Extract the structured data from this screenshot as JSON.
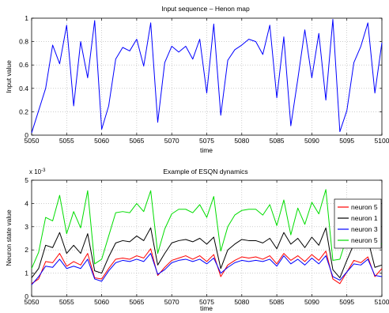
{
  "chart_data": [
    {
      "type": "line",
      "title": "Input sequence – Henon map",
      "xlabel": "time",
      "ylabel": "Input value",
      "xlim": [
        5050,
        5100
      ],
      "ylim": [
        0,
        1
      ],
      "xticks": [
        "5050",
        "5055",
        "5060",
        "5065",
        "5070",
        "5075",
        "5080",
        "5085",
        "5090",
        "5095",
        "5100"
      ],
      "yticks": [
        "0",
        "0.2",
        "0.4",
        "0.6",
        "0.8",
        "1"
      ],
      "grid": true,
      "colors": {
        "line": "#0000ff"
      },
      "series": [
        {
          "x": [
            5050,
            5051,
            5052,
            5053,
            5054,
            5055,
            5056,
            5057,
            5058,
            5059,
            5060,
            5061,
            5062,
            5063,
            5064,
            5065,
            5066,
            5067,
            5068,
            5069,
            5070,
            5071,
            5072,
            5073,
            5074,
            5075,
            5076,
            5077,
            5078,
            5079,
            5080,
            5081,
            5082,
            5083,
            5084,
            5085,
            5086,
            5087,
            5088,
            5089,
            5090,
            5091,
            5092,
            5093,
            5094,
            5095,
            5096,
            5097,
            5098,
            5099,
            5100
          ],
          "values": [
            0.02,
            0.21,
            0.4,
            0.77,
            0.61,
            0.94,
            0.25,
            0.8,
            0.49,
            0.98,
            0.05,
            0.25,
            0.65,
            0.75,
            0.72,
            0.82,
            0.59,
            0.96,
            0.11,
            0.62,
            0.76,
            0.71,
            0.76,
            0.65,
            0.82,
            0.36,
            0.95,
            0.17,
            0.64,
            0.73,
            0.77,
            0.82,
            0.8,
            0.69,
            0.94,
            0.32,
            0.84,
            0.08,
            0.48,
            0.9,
            0.49,
            0.87,
            0.3,
            0.99,
            0.03,
            0.21,
            0.62,
            0.76,
            0.96,
            0.36,
            0.79
          ]
        }
      ]
    },
    {
      "type": "line",
      "title": "Example of ESQN dynamics",
      "xlabel": "time",
      "ylabel": "Neuron state value",
      "exponent_label": "x 10",
      "exponent_power": "-3",
      "xlim": [
        5050,
        5100
      ],
      "ylim": [
        0,
        5
      ],
      "xticks": [
        "5050",
        "5055",
        "5060",
        "5065",
        "5070",
        "5075",
        "5080",
        "5085",
        "5090",
        "5095",
        "5100"
      ],
      "yticks": [
        "0",
        "1",
        "2",
        "3",
        "4",
        "5"
      ],
      "grid": true,
      "legend": "top-right",
      "x": [
        5050,
        5051,
        5052,
        5053,
        5054,
        5055,
        5056,
        5057,
        5058,
        5059,
        5060,
        5061,
        5062,
        5063,
        5064,
        5065,
        5066,
        5067,
        5068,
        5069,
        5070,
        5071,
        5072,
        5073,
        5074,
        5075,
        5076,
        5077,
        5078,
        5079,
        5080,
        5081,
        5082,
        5083,
        5084,
        5085,
        5086,
        5087,
        5088,
        5089,
        5090,
        5091,
        5092,
        5093,
        5094,
        5095,
        5096,
        5097,
        5098,
        5099,
        5100
      ],
      "series": [
        {
          "name": "neuron 5",
          "color": "#ff0000",
          "values": [
            0.55,
            0.75,
            1.5,
            1.45,
            1.85,
            1.3,
            1.5,
            1.35,
            1.85,
            0.8,
            0.75,
            1.2,
            1.6,
            1.65,
            1.6,
            1.75,
            1.65,
            2.05,
            0.9,
            1.25,
            1.55,
            1.65,
            1.75,
            1.6,
            1.75,
            1.5,
            1.8,
            0.85,
            1.35,
            1.55,
            1.7,
            1.65,
            1.7,
            1.6,
            1.75,
            1.4,
            1.85,
            1.55,
            1.75,
            1.5,
            1.8,
            1.55,
            1.95,
            0.75,
            0.55,
            1.05,
            1.55,
            1.45,
            1.7,
            0.85,
            1.2
          ]
        },
        {
          "name": "neuron 1",
          "color": "#000000",
          "values": [
            0.8,
            1.2,
            2.2,
            2.1,
            2.75,
            1.85,
            2.2,
            1.85,
            2.7,
            1.1,
            1.0,
            1.7,
            2.3,
            2.4,
            2.35,
            2.6,
            2.4,
            2.95,
            1.35,
            1.85,
            2.3,
            2.4,
            2.45,
            2.35,
            2.5,
            2.25,
            2.55,
            1.2,
            2.0,
            2.25,
            2.45,
            2.4,
            2.4,
            2.3,
            2.5,
            2.05,
            2.75,
            2.25,
            2.5,
            2.1,
            2.55,
            2.2,
            2.95,
            1.15,
            0.8,
            1.55,
            2.25,
            2.1,
            2.45,
            1.25,
            1.35
          ]
        },
        {
          "name": "neuron 3",
          "color": "#0000ff",
          "values": [
            0.5,
            0.85,
            1.3,
            1.25,
            1.6,
            1.2,
            1.3,
            1.2,
            1.6,
            0.75,
            0.65,
            1.1,
            1.45,
            1.55,
            1.5,
            1.6,
            1.5,
            1.85,
            0.95,
            1.15,
            1.45,
            1.55,
            1.6,
            1.5,
            1.6,
            1.4,
            1.65,
            1.0,
            1.25,
            1.45,
            1.55,
            1.5,
            1.55,
            1.5,
            1.6,
            1.3,
            1.75,
            1.4,
            1.6,
            1.35,
            1.65,
            1.4,
            1.75,
            0.85,
            0.7,
            1.05,
            1.4,
            1.35,
            1.6,
            0.9,
            0.85
          ]
        },
        {
          "name": "neuron 5",
          "color": "#00dd00",
          "values": [
            1.2,
            1.9,
            3.4,
            3.25,
            4.35,
            2.7,
            3.65,
            2.95,
            4.55,
            1.4,
            1.6,
            2.6,
            3.6,
            3.65,
            3.6,
            4.0,
            3.65,
            4.55,
            1.85,
            2.9,
            3.55,
            3.75,
            3.75,
            3.6,
            3.95,
            3.4,
            4.3,
            1.95,
            3.0,
            3.5,
            3.7,
            3.75,
            3.75,
            3.5,
            3.95,
            3.05,
            4.15,
            2.65,
            3.8,
            3.1,
            4.05,
            3.55,
            4.6,
            1.55,
            1.6,
            2.55,
            3.6,
            3.55,
            4.0,
            2.4,
            2.25
          ]
        }
      ]
    }
  ]
}
